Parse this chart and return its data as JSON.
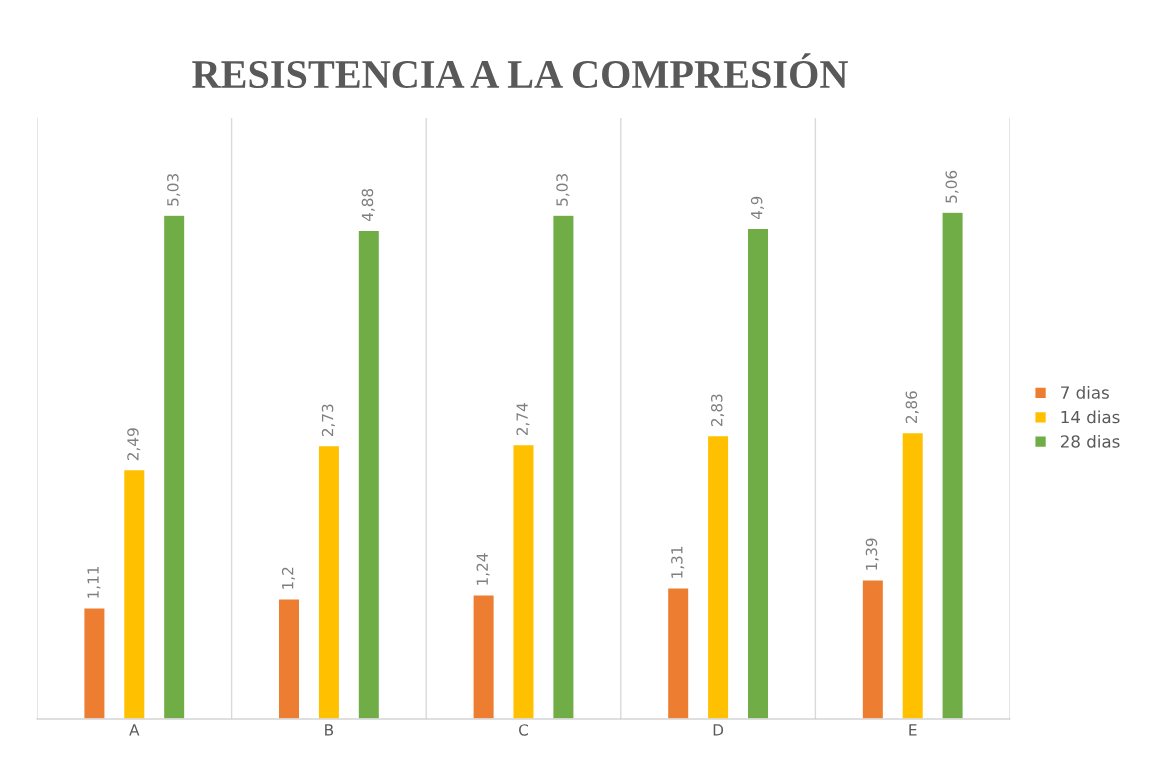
{
  "chart_data": {
    "type": "bar",
    "title": "RESISTENCIA A LA COMPRESIÓN",
    "categories": [
      "A",
      "B",
      "C",
      "D",
      "E"
    ],
    "series": [
      {
        "name": "7 dias",
        "color": "#ed7d31",
        "values": [
          1.11,
          1.2,
          1.24,
          1.31,
          1.39
        ],
        "value_labels": [
          "1,11",
          "1,2",
          "1,24",
          "1,31",
          "1,39"
        ]
      },
      {
        "name": "14 dias",
        "color": "#ffc000",
        "values": [
          2.49,
          2.73,
          2.74,
          2.83,
          2.86
        ],
        "value_labels": [
          "2,49",
          "2,73",
          "2,74",
          "2,83",
          "2,86"
        ]
      },
      {
        "name": "28 dias",
        "color": "#70ad47",
        "values": [
          5.03,
          4.88,
          5.03,
          4.9,
          5.06
        ],
        "value_labels": [
          "5,03",
          "4,88",
          "5,03",
          "4,9",
          "5,06"
        ]
      }
    ],
    "ylim": [
      0,
      6
    ],
    "grid": "x",
    "legend": "right",
    "tick_labels": "x"
  }
}
